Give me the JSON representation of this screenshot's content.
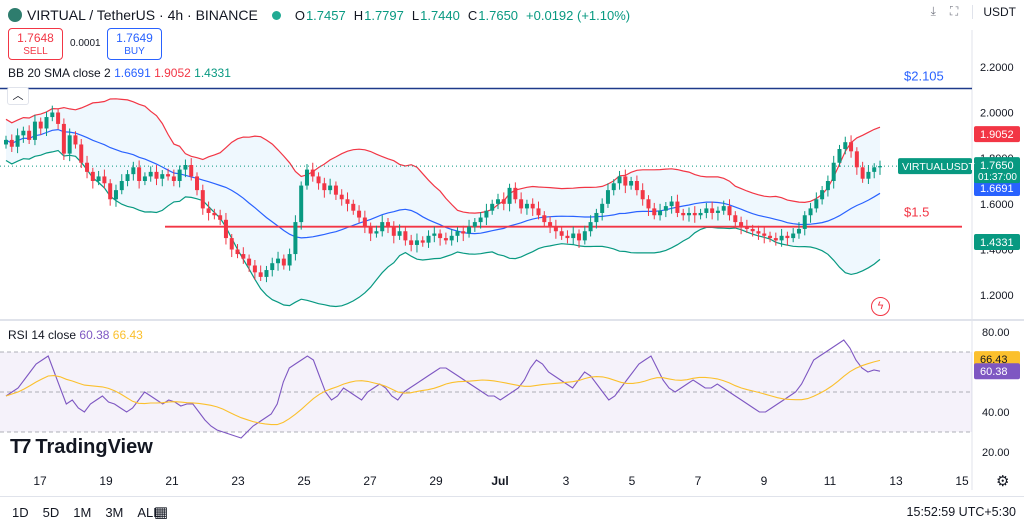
{
  "header": {
    "title": "VIRTUAL / TetherUS · 4h · BINANCE",
    "open_label": "O",
    "open": "1.7457",
    "high_label": "H",
    "high": "1.7797",
    "low_label": "L",
    "low": "1.7440",
    "close_label": "C",
    "close": "1.7650",
    "change": "+0.0192 (+1.10%)",
    "currency": "USDT"
  },
  "trade": {
    "sell_price": "1.7648",
    "sell_label": "SELL",
    "spread": "0.0001",
    "buy_price": "1.7649",
    "buy_label": "BUY"
  },
  "bb_legend": {
    "label": "BB 20 SMA close 2",
    "basis": "1.6691",
    "upper": "1.9052",
    "lower": "1.4331"
  },
  "rsi_legend": {
    "label": "RSI 14 close",
    "rsi": "60.38",
    "ma": "66.43"
  },
  "branding": "TradingView",
  "bottom": {
    "ranges": [
      "1D",
      "5D",
      "1M",
      "3M",
      "ALL"
    ],
    "time": "15:52:59 UTC+5:30"
  },
  "colors": {
    "up": "#089981",
    "down": "#f23645",
    "basis": "#2962ff",
    "upper": "#f23645",
    "lower": "#089981",
    "rsi": "#7e57c2",
    "rsi_ma": "#fbc02d",
    "level": "#f23645",
    "top_line": "#1e3a8a"
  },
  "icons": [
    "collapse-up-icon",
    "download-icon",
    "fullscreen-icon",
    "calendar-icon",
    "gear-icon",
    "flash-icon"
  ],
  "chart_data": [
    {
      "type": "candlestick",
      "title": "VIRTUAL / TetherUS · 4h · BINANCE",
      "x_ticks": [
        "17",
        "19",
        "21",
        "23",
        "25",
        "27",
        "29",
        "Jul",
        "3",
        "5",
        "7",
        "9",
        "11",
        "13",
        "15"
      ],
      "y_ticks": [
        "1.2000",
        "1.4000",
        "1.6000",
        "1.8000",
        "2.0000",
        "2.2000"
      ],
      "ylim": [
        1.1,
        2.3
      ],
      "closes": [
        1.88,
        1.85,
        1.9,
        1.92,
        1.88,
        1.96,
        1.93,
        1.98,
        2.0,
        1.95,
        1.82,
        1.9,
        1.86,
        1.78,
        1.74,
        1.7,
        1.72,
        1.69,
        1.62,
        1.66,
        1.7,
        1.73,
        1.76,
        1.7,
        1.72,
        1.74,
        1.71,
        1.73,
        1.72,
        1.7,
        1.75,
        1.77,
        1.72,
        1.66,
        1.58,
        1.56,
        1.55,
        1.53,
        1.45,
        1.4,
        1.38,
        1.36,
        1.33,
        1.3,
        1.28,
        1.31,
        1.34,
        1.36,
        1.33,
        1.38,
        1.52,
        1.68,
        1.75,
        1.72,
        1.69,
        1.66,
        1.68,
        1.64,
        1.62,
        1.6,
        1.57,
        1.54,
        1.5,
        1.47,
        1.48,
        1.52,
        1.5,
        1.46,
        1.48,
        1.44,
        1.42,
        1.44,
        1.43,
        1.46,
        1.47,
        1.45,
        1.44,
        1.46,
        1.48,
        1.47,
        1.5,
        1.52,
        1.54,
        1.57,
        1.6,
        1.62,
        1.6,
        1.67,
        1.62,
        1.58,
        1.6,
        1.58,
        1.55,
        1.52,
        1.5,
        1.48,
        1.46,
        1.45,
        1.47,
        1.44,
        1.48,
        1.52,
        1.56,
        1.6,
        1.66,
        1.69,
        1.72,
        1.68,
        1.7,
        1.66,
        1.62,
        1.58,
        1.55,
        1.57,
        1.59,
        1.61,
        1.56,
        1.55,
        1.56,
        1.55,
        1.56,
        1.58,
        1.56,
        1.57,
        1.59,
        1.55,
        1.52,
        1.5,
        1.49,
        1.48,
        1.47,
        1.46,
        1.45,
        1.44,
        1.46,
        1.45,
        1.47,
        1.49,
        1.55,
        1.58,
        1.62,
        1.66,
        1.7,
        1.78,
        1.84,
        1.87,
        1.83,
        1.76,
        1.71,
        1.74,
        1.76,
        1.765
      ],
      "series": [
        {
          "name": "Basis",
          "last": 1.6691
        },
        {
          "name": "Upper",
          "last": 1.9052
        },
        {
          "name": "Lower",
          "last": 1.4331
        }
      ],
      "annotations": [
        {
          "text": "$2.105",
          "y": 2.105
        },
        {
          "text": "$1.5",
          "y": 1.5
        },
        {
          "text": "VIRTUALUSDT",
          "y": 1.765
        }
      ],
      "last_price": "1.7650",
      "countdown": "01:37:00",
      "price_labels": {
        "upper": "1.9052",
        "basis": "1.6691",
        "lower": "1.4331"
      }
    },
    {
      "type": "line",
      "title": "RSI 14 close",
      "y_ticks": [
        "20.00",
        "40.00",
        "60.00",
        "80.00"
      ],
      "ylim": [
        15,
        85
      ],
      "bands": [
        70,
        50,
        30
      ],
      "series": [
        {
          "name": "RSI",
          "last": 60.38,
          "label": "60.38",
          "values": [
            48,
            50,
            52,
            56,
            60,
            64,
            66,
            68,
            60,
            52,
            44,
            46,
            42,
            40,
            44,
            46,
            48,
            45,
            44,
            42,
            40,
            42,
            46,
            50,
            48,
            46,
            44,
            46,
            45,
            43,
            44,
            44,
            40,
            36,
            33,
            31,
            30,
            29,
            28,
            27,
            30,
            33,
            35,
            37,
            39,
            44,
            55,
            62,
            64,
            66,
            68,
            66,
            58,
            50,
            46,
            48,
            52,
            50,
            48,
            46,
            50,
            52,
            54,
            52,
            48,
            46,
            50,
            52,
            54,
            56,
            58,
            60,
            62,
            62,
            60,
            58,
            56,
            54,
            52,
            50,
            48,
            48,
            46,
            48,
            50,
            52,
            56,
            62,
            66,
            64,
            60,
            58,
            56,
            54,
            52,
            56,
            60,
            58,
            54,
            50,
            46,
            48,
            52,
            56,
            60,
            64,
            66,
            68,
            62,
            56,
            52,
            50,
            52,
            54,
            56,
            54,
            52,
            52,
            54,
            52,
            50,
            48,
            46,
            44,
            42,
            40,
            40,
            42,
            44,
            46,
            48,
            50,
            54,
            60,
            66,
            68,
            70,
            72,
            74,
            76,
            72,
            66,
            62,
            60,
            61,
            60.38
          ]
        },
        {
          "name": "RSI-based MA",
          "last": 66.43,
          "label": "66.43"
        }
      ]
    }
  ]
}
